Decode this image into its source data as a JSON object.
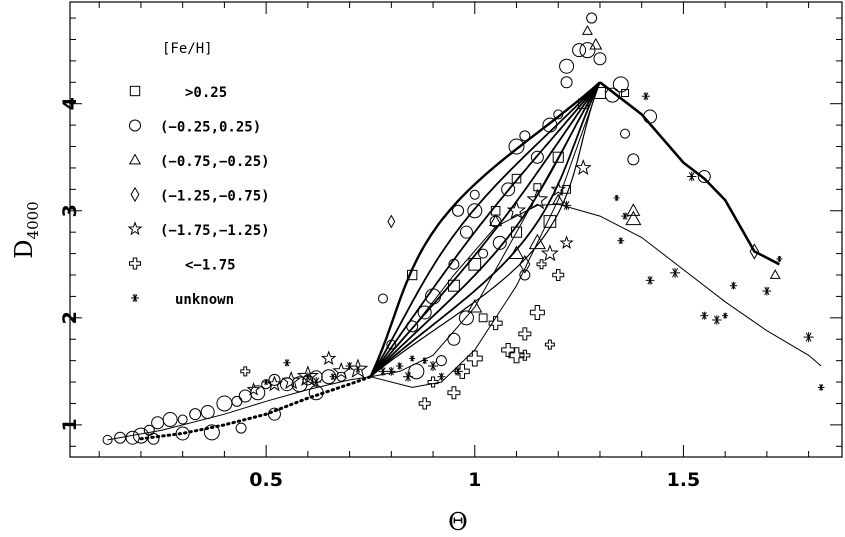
{
  "chart_data": {
    "type": "scatter",
    "xlabel": "Θ",
    "ylabel_main": "D",
    "ylabel_sub": "4000",
    "xlim": [
      0.03,
      1.88
    ],
    "ylim": [
      0.7,
      4.95
    ],
    "x_ticks": [
      0.5,
      1,
      1.5
    ],
    "x_tick_labels": [
      "0.5",
      "1",
      "1.5"
    ],
    "y_ticks": [
      1,
      2,
      3,
      4
    ],
    "y_tick_labels": [
      "1",
      "2",
      "3",
      "4"
    ],
    "grid": false,
    "legend": {
      "title": "[Fe/H]",
      "placement": "top-left",
      "entries": [
        {
          "marker": "square",
          "label": ">0.25"
        },
        {
          "marker": "circle",
          "label": "(−0.25,0.25)"
        },
        {
          "marker": "triangle",
          "label": "(−0.75,−0.25)"
        },
        {
          "marker": "diamond",
          "label": "(−1.25,−0.75)"
        },
        {
          "marker": "star",
          "label": "(−1.75,−1.25)"
        },
        {
          "marker": "cross",
          "label": "<−1.75"
        },
        {
          "marker": "asterisk",
          "label": "unknown"
        }
      ]
    },
    "series": [
      {
        "marker": "circle",
        "points": [
          [
            0.12,
            0.86
          ],
          [
            0.15,
            0.88
          ],
          [
            0.18,
            0.88
          ],
          [
            0.2,
            0.9
          ],
          [
            0.22,
            0.95
          ],
          [
            0.24,
            1.02
          ],
          [
            0.27,
            1.05
          ],
          [
            0.3,
            1.05
          ],
          [
            0.33,
            1.1
          ],
          [
            0.36,
            1.12
          ],
          [
            0.4,
            1.2
          ],
          [
            0.43,
            1.22
          ],
          [
            0.45,
            1.27
          ],
          [
            0.48,
            1.3
          ],
          [
            0.5,
            1.38
          ],
          [
            0.52,
            1.42
          ],
          [
            0.55,
            1.38
          ],
          [
            0.58,
            1.38
          ],
          [
            0.6,
            1.42
          ],
          [
            0.62,
            1.45
          ],
          [
            0.65,
            1.45
          ],
          [
            0.68,
            1.45
          ],
          [
            0.23,
            0.87
          ],
          [
            0.3,
            0.92
          ],
          [
            0.37,
            0.93
          ],
          [
            0.44,
            0.97
          ],
          [
            0.52,
            1.1
          ],
          [
            0.62,
            1.3
          ],
          [
            0.78,
            2.18
          ],
          [
            0.85,
            1.92
          ],
          [
            0.88,
            2.05
          ],
          [
            0.9,
            2.2
          ],
          [
            0.95,
            2.5
          ],
          [
            0.98,
            2.8
          ],
          [
            1.0,
            3.0
          ],
          [
            1.02,
            2.6
          ],
          [
            1.05,
            2.9
          ],
          [
            1.08,
            3.2
          ],
          [
            1.1,
            3.6
          ],
          [
            1.12,
            3.7
          ],
          [
            1.15,
            3.5
          ],
          [
            1.18,
            3.8
          ],
          [
            1.2,
            3.9
          ],
          [
            1.22,
            4.2
          ],
          [
            1.25,
            4.5
          ],
          [
            1.27,
            4.5
          ],
          [
            1.28,
            4.8
          ],
          [
            1.3,
            4.42
          ],
          [
            1.33,
            4.08
          ],
          [
            1.36,
            3.72
          ],
          [
            1.38,
            3.48
          ],
          [
            1.42,
            3.88
          ],
          [
            1.35,
            4.18
          ],
          [
            0.92,
            1.6
          ],
          [
            0.95,
            1.8
          ],
          [
            0.98,
            2.0
          ],
          [
            1.0,
            3.15
          ],
          [
            0.96,
            3.0
          ],
          [
            1.06,
            2.7
          ],
          [
            0.86,
            1.5
          ],
          [
            1.12,
            2.4
          ],
          [
            1.55,
            3.32
          ],
          [
            1.22,
            4.35
          ],
          [
            0.8,
            1.75
          ]
        ]
      },
      {
        "marker": "square",
        "points": [
          [
            1.15,
            3.22
          ],
          [
            1.1,
            3.3
          ],
          [
            1.2,
            3.5
          ],
          [
            1.0,
            2.5
          ],
          [
            1.02,
            2.0
          ],
          [
            1.26,
            4.0
          ],
          [
            1.3,
            4.1
          ],
          [
            1.36,
            4.1
          ],
          [
            1.05,
            3.0
          ],
          [
            1.1,
            2.8
          ],
          [
            1.18,
            2.9
          ],
          [
            1.22,
            3.2
          ],
          [
            0.85,
            2.4
          ],
          [
            0.95,
            2.3
          ]
        ]
      },
      {
        "marker": "triangle",
        "points": [
          [
            1.27,
            4.68
          ],
          [
            1.29,
            4.55
          ],
          [
            1.1,
            2.6
          ],
          [
            1.15,
            2.7
          ],
          [
            1.2,
            3.1
          ],
          [
            1.38,
            3.0
          ],
          [
            1.38,
            2.92
          ],
          [
            1.72,
            2.4
          ],
          [
            1.05,
            2.9
          ],
          [
            1.0,
            2.1
          ]
        ]
      },
      {
        "marker": "diamond",
        "points": [
          [
            0.8,
            2.9
          ],
          [
            1.67,
            2.62
          ],
          [
            1.12,
            2.5
          ]
        ]
      },
      {
        "marker": "star",
        "points": [
          [
            0.47,
            1.33
          ],
          [
            0.52,
            1.38
          ],
          [
            0.56,
            1.41
          ],
          [
            0.6,
            1.45
          ],
          [
            0.65,
            1.62
          ],
          [
            0.68,
            1.5
          ],
          [
            0.72,
            1.52
          ],
          [
            1.22,
            2.7
          ],
          [
            1.26,
            3.4
          ],
          [
            1.1,
            3.0
          ],
          [
            1.15,
            3.1
          ],
          [
            1.2,
            3.2
          ],
          [
            1.18,
            2.6
          ]
        ]
      },
      {
        "marker": "cross",
        "points": [
          [
            0.45,
            1.5
          ],
          [
            0.88,
            1.2
          ],
          [
            1.08,
            1.7
          ],
          [
            1.1,
            1.65
          ],
          [
            1.12,
            1.65
          ],
          [
            1.12,
            1.85
          ],
          [
            1.15,
            2.05
          ],
          [
            1.16,
            2.5
          ],
          [
            1.2,
            2.4
          ],
          [
            1.05,
            1.95
          ],
          [
            1.0,
            1.62
          ],
          [
            0.9,
            1.4
          ],
          [
            0.95,
            1.3
          ],
          [
            0.97,
            1.5
          ],
          [
            1.18,
            1.75
          ]
        ]
      },
      {
        "marker": "asterisk",
        "points": [
          [
            0.5,
            1.4
          ],
          [
            0.55,
            1.58
          ],
          [
            0.6,
            1.45
          ],
          [
            0.62,
            1.4
          ],
          [
            0.66,
            1.45
          ],
          [
            0.7,
            1.55
          ],
          [
            1.22,
            3.05
          ],
          [
            1.34,
            3.12
          ],
          [
            1.36,
            2.95
          ],
          [
            1.42,
            2.35
          ],
          [
            1.48,
            2.42
          ],
          [
            1.35,
            2.72
          ],
          [
            1.55,
            2.02
          ],
          [
            1.58,
            1.98
          ],
          [
            1.6,
            2.02
          ],
          [
            1.62,
            2.3
          ],
          [
            1.7,
            2.25
          ],
          [
            1.8,
            1.82
          ],
          [
            1.83,
            1.35
          ],
          [
            1.41,
            4.07
          ],
          [
            1.52,
            3.32
          ],
          [
            1.73,
            2.55
          ],
          [
            0.72,
            1.52
          ],
          [
            0.8,
            1.5
          ],
          [
            0.9,
            1.55
          ],
          [
            0.88,
            1.6
          ],
          [
            0.92,
            1.45
          ],
          [
            0.96,
            1.5
          ],
          [
            0.85,
            1.62
          ],
          [
            0.82,
            1.55
          ],
          [
            0.78,
            1.5
          ],
          [
            0.84,
            1.45
          ]
        ]
      }
    ],
    "curves": [
      {
        "style": "solid-thin",
        "points": [
          [
            0.12,
            0.86
          ],
          [
            0.25,
            0.95
          ],
          [
            0.4,
            1.1
          ],
          [
            0.5,
            1.22
          ],
          [
            0.6,
            1.33
          ],
          [
            0.7,
            1.42
          ],
          [
            0.75,
            1.45
          ]
        ]
      },
      {
        "style": "dotted",
        "points": [
          [
            0.2,
            0.87
          ],
          [
            0.3,
            0.92
          ],
          [
            0.4,
            1.0
          ],
          [
            0.5,
            1.1
          ],
          [
            0.6,
            1.25
          ],
          [
            0.7,
            1.38
          ],
          [
            0.75,
            1.45
          ]
        ]
      },
      {
        "style": "solid-thin",
        "points": [
          [
            0.75,
            1.45
          ],
          [
            0.85,
            1.9
          ],
          [
            0.95,
            2.4
          ],
          [
            1.05,
            2.85
          ],
          [
            1.15,
            3.05
          ],
          [
            1.2,
            3.06
          ],
          [
            1.3,
            2.95
          ],
          [
            1.4,
            2.75
          ],
          [
            1.5,
            2.45
          ],
          [
            1.6,
            2.15
          ],
          [
            1.7,
            1.88
          ],
          [
            1.8,
            1.65
          ],
          [
            1.83,
            1.55
          ]
        ]
      },
      {
        "style": "solid-thick",
        "points": [
          [
            1.3,
            4.2
          ],
          [
            1.4,
            3.9
          ],
          [
            1.5,
            3.45
          ],
          [
            1.55,
            3.3
          ],
          [
            1.6,
            3.1
          ],
          [
            1.67,
            2.62
          ],
          [
            1.73,
            2.5
          ]
        ]
      },
      {
        "style": "solid-thin",
        "points": [
          [
            0.75,
            1.45
          ],
          [
            0.85,
            1.35
          ],
          [
            0.92,
            1.4
          ],
          [
            1.0,
            1.7
          ],
          [
            1.1,
            2.3
          ],
          [
            1.2,
            3.1
          ],
          [
            1.3,
            4.2
          ]
        ]
      },
      {
        "style": "solid-thin",
        "points": [
          [
            0.75,
            1.45
          ],
          [
            0.82,
            1.5
          ],
          [
            0.9,
            1.65
          ],
          [
            1.0,
            2.1
          ],
          [
            1.1,
            2.8
          ],
          [
            1.2,
            3.5
          ],
          [
            1.3,
            4.2
          ]
        ]
      }
    ],
    "loops": [
      {
        "offset": 0.3,
        "width": 2.4
      },
      {
        "offset": 0.16,
        "width": 1.8
      },
      {
        "offset": 0.05,
        "width": 1.8
      },
      {
        "offset": -0.06,
        "width": 1.8
      },
      {
        "offset": -0.17,
        "width": 1.8
      },
      {
        "offset": -0.28,
        "width": 1.8
      },
      {
        "offset": -0.38,
        "width": 1.2
      }
    ]
  }
}
